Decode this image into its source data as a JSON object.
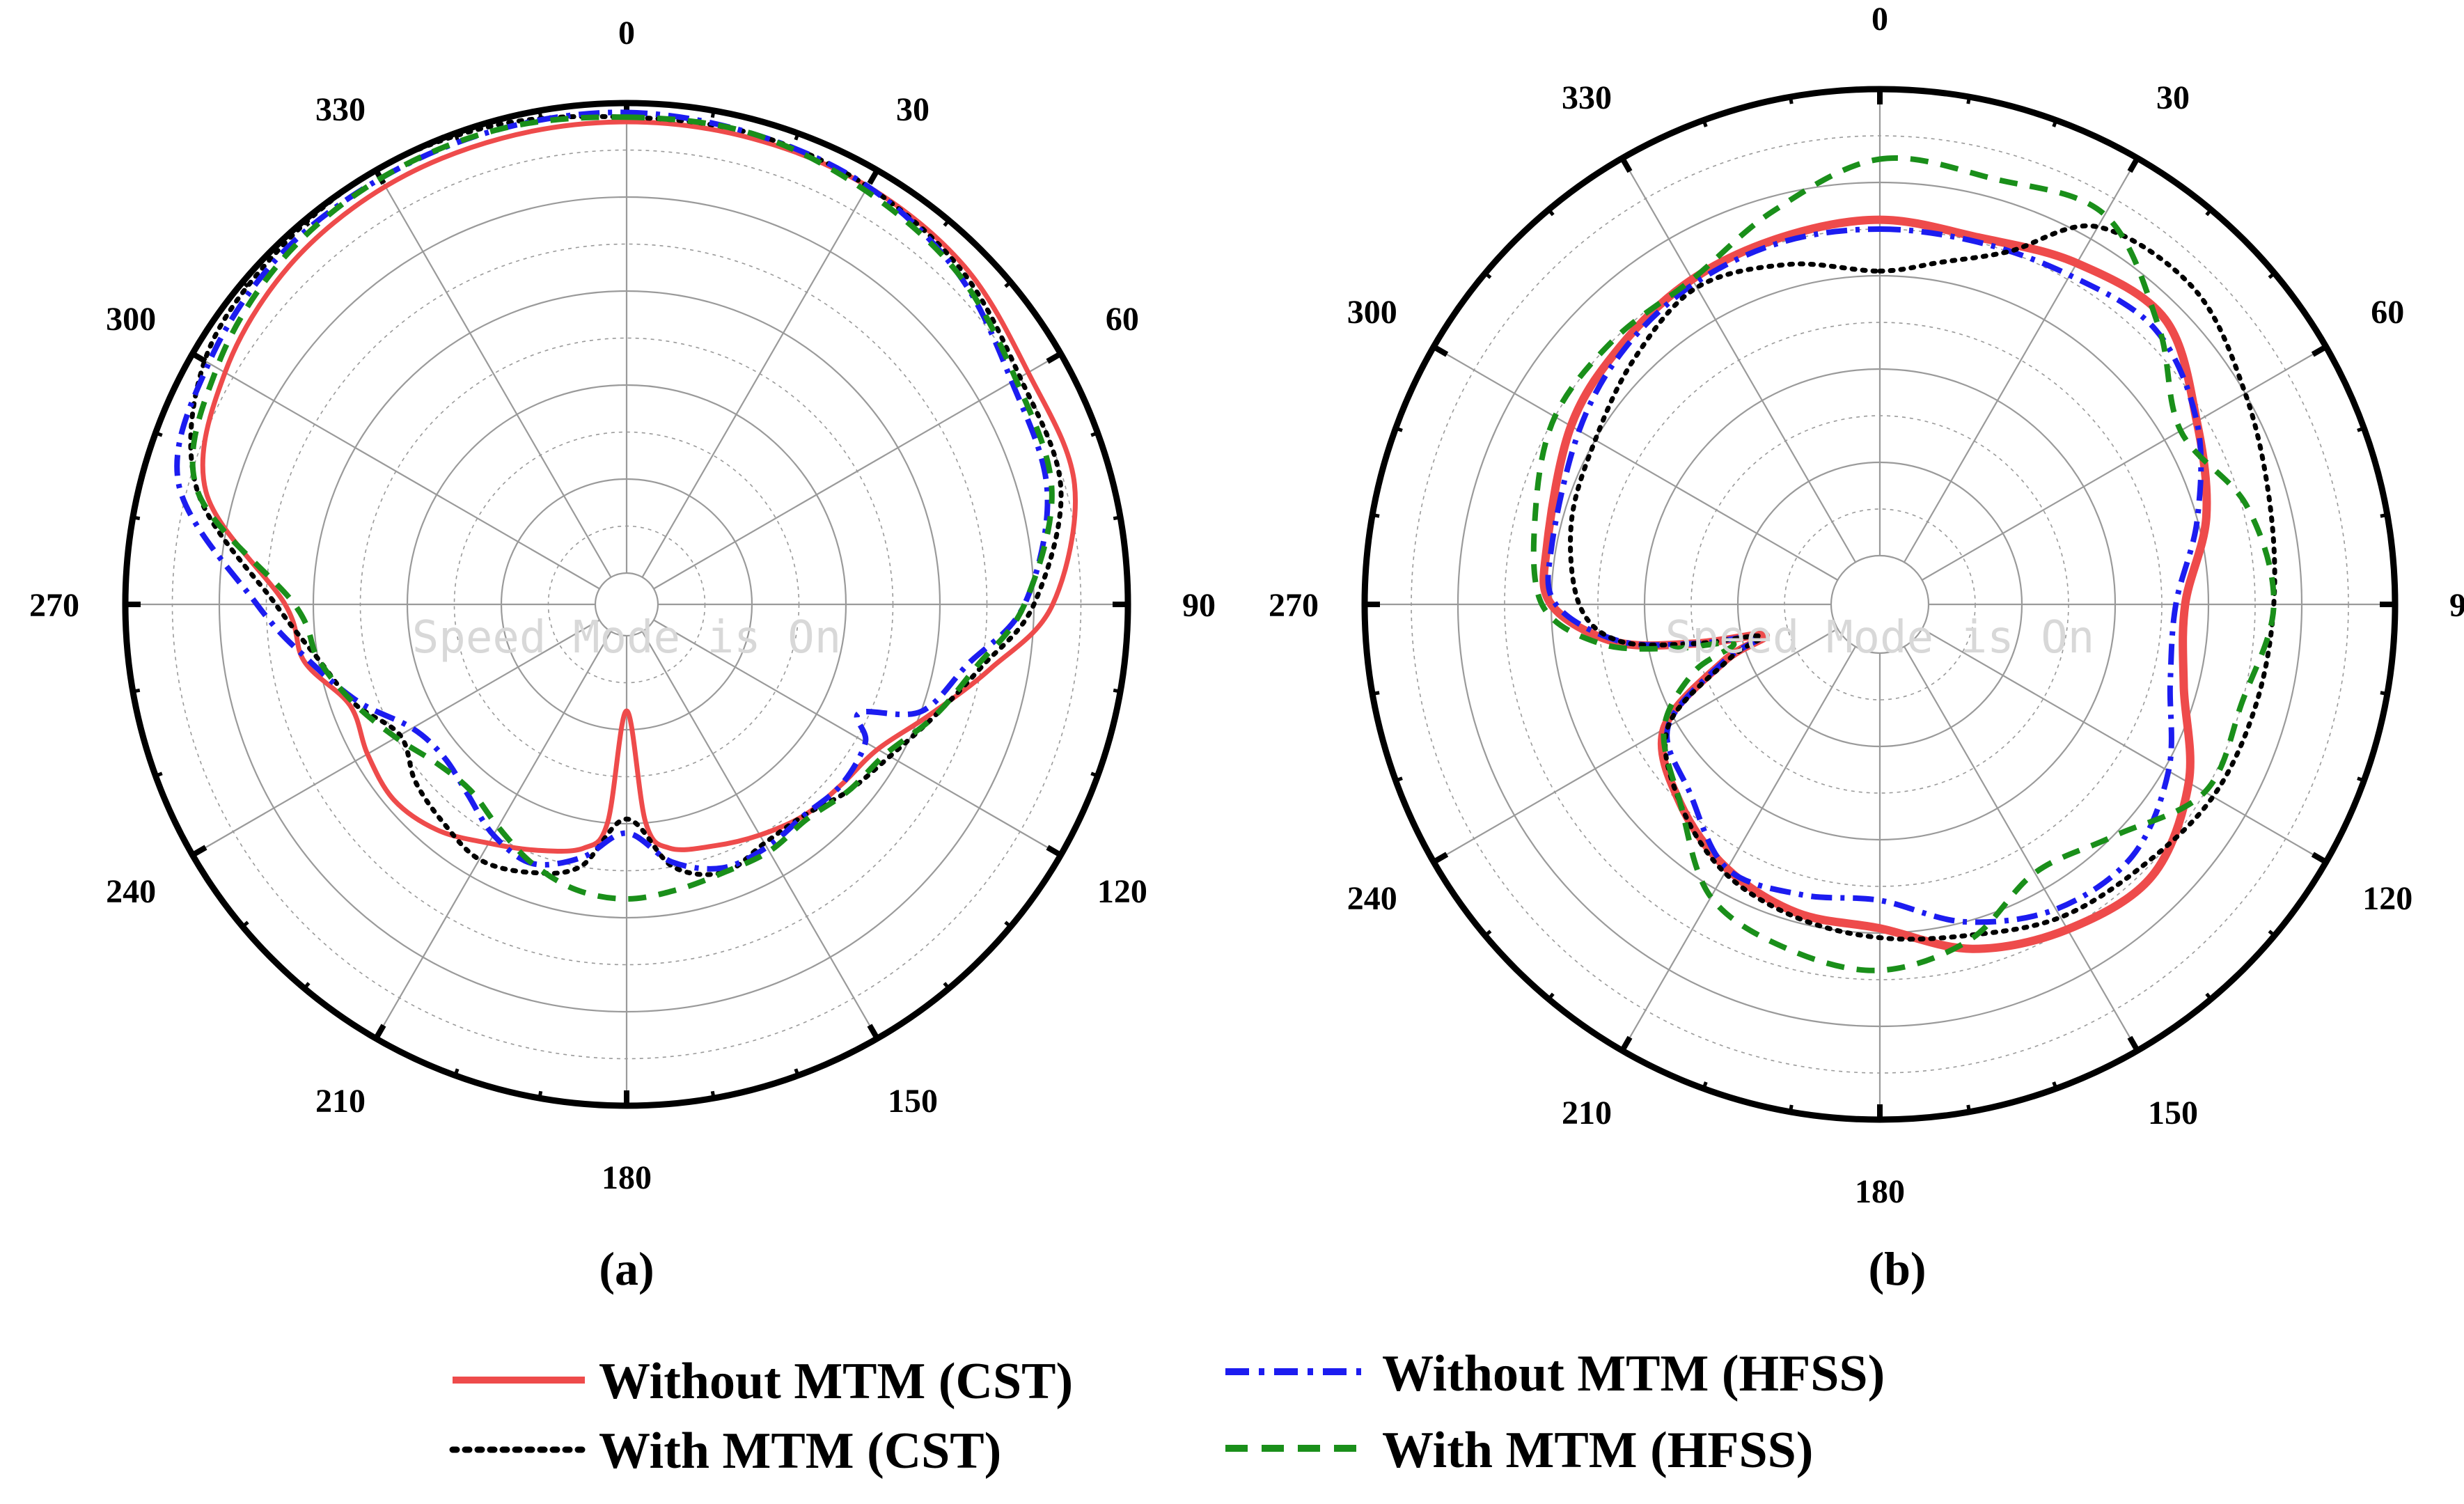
{
  "colors": {
    "cst_without": "#ee4b4b",
    "cst_with": "#000000",
    "hfss_without": "#1c1cf0",
    "hfss_with": "#1a8f1a",
    "grid": "#9a9a9a"
  },
  "watermark": "Speed Mode is On",
  "legend": [
    {
      "key": "cst_without",
      "label": "Without MTM (CST)",
      "style": "solid"
    },
    {
      "key": "hfss_without",
      "label": "Without MTM (HFSS)",
      "style": "dashdot"
    },
    {
      "key": "cst_with",
      "label": "With MTM (CST)",
      "style": "dotted"
    },
    {
      "key": "hfss_with",
      "label": "With MTM (HFSS)",
      "style": "dashed"
    }
  ],
  "chart_data": [
    {
      "type": "polar",
      "panel_label": "(a)",
      "angle_ticks": [
        "0",
        "30",
        "60",
        "90",
        "120",
        "150",
        "180",
        "210",
        "240",
        "270",
        "300",
        "330"
      ],
      "rlim": [
        0,
        1
      ],
      "series": [
        {
          "key": "cst_without",
          "name": "Without MTM (CST)",
          "angles": [
            0,
            15,
            30,
            45,
            60,
            75,
            90,
            100,
            110,
            120,
            130,
            140,
            150,
            160,
            170,
            175,
            180,
            185,
            190,
            200,
            210,
            220,
            230,
            240,
            250,
            260,
            270,
            285,
            300,
            315,
            330,
            345,
            360
          ],
          "radii": [
            0.96,
            0.96,
            0.96,
            0.95,
            0.92,
            0.92,
            0.84,
            0.72,
            0.62,
            0.55,
            0.53,
            0.52,
            0.5,
            0.48,
            0.46,
            0.4,
            0.16,
            0.4,
            0.46,
            0.49,
            0.52,
            0.56,
            0.58,
            0.57,
            0.56,
            0.63,
            0.66,
            0.86,
            0.92,
            0.95,
            0.96,
            0.96,
            0.96
          ]
        },
        {
          "key": "cst_with",
          "name": "With MTM (CST)",
          "angles": [
            0,
            15,
            30,
            45,
            60,
            75,
            90,
            100,
            110,
            120,
            130,
            140,
            150,
            160,
            170,
            180,
            190,
            200,
            210,
            220,
            230,
            240,
            250,
            260,
            270,
            285,
            300,
            315,
            330,
            345,
            360
          ],
          "radii": [
            0.97,
            0.97,
            0.96,
            0.94,
            0.9,
            0.89,
            0.8,
            0.7,
            0.63,
            0.58,
            0.55,
            0.52,
            0.52,
            0.54,
            0.5,
            0.39,
            0.5,
            0.54,
            0.56,
            0.54,
            0.52,
            0.49,
            0.55,
            0.6,
            0.68,
            0.88,
            0.97,
            0.99,
            1.0,
            0.99,
            0.97
          ]
        },
        {
          "key": "hfss_without",
          "name": "Without MTM (HFSS)",
          "angles": [
            0,
            15,
            30,
            45,
            60,
            75,
            90,
            100,
            110,
            115,
            120,
            130,
            140,
            150,
            160,
            170,
            180,
            190,
            200,
            210,
            220,
            230,
            240,
            250,
            260,
            270,
            285,
            300,
            315,
            330,
            345,
            360
          ],
          "radii": [
            0.98,
            0.97,
            0.96,
            0.93,
            0.88,
            0.86,
            0.78,
            0.67,
            0.6,
            0.48,
            0.52,
            0.53,
            0.52,
            0.53,
            0.53,
            0.49,
            0.42,
            0.48,
            0.52,
            0.5,
            0.46,
            0.44,
            0.46,
            0.54,
            0.62,
            0.72,
            0.92,
            0.96,
            0.98,
            0.98,
            0.98,
            0.98
          ]
        },
        {
          "key": "hfss_with",
          "name": "With MTM (HFSS)",
          "angles": [
            0,
            15,
            30,
            45,
            60,
            75,
            90,
            100,
            110,
            120,
            130,
            140,
            150,
            160,
            170,
            180,
            190,
            200,
            210,
            220,
            230,
            240,
            250,
            260,
            270,
            285,
            300,
            315,
            330,
            345,
            360
          ],
          "radii": [
            0.97,
            0.97,
            0.95,
            0.93,
            0.89,
            0.87,
            0.78,
            0.69,
            0.63,
            0.57,
            0.55,
            0.53,
            0.54,
            0.54,
            0.55,
            0.56,
            0.55,
            0.52,
            0.48,
            0.45,
            0.46,
            0.5,
            0.55,
            0.6,
            0.64,
            0.88,
            0.94,
            0.97,
            0.98,
            0.98,
            0.97
          ]
        }
      ]
    },
    {
      "type": "polar",
      "panel_label": "(b)",
      "angle_ticks": [
        "0",
        "30",
        "60",
        "90",
        "120",
        "150",
        "180",
        "210",
        "240",
        "270",
        "300",
        "330"
      ],
      "rlim": [
        0,
        1
      ],
      "series": [
        {
          "key": "cst_without",
          "name": "Without MTM (CST)",
          "angles": [
            0,
            15,
            30,
            45,
            60,
            75,
            90,
            105,
            120,
            135,
            150,
            165,
            180,
            195,
            210,
            225,
            240,
            250,
            255,
            258,
            262,
            270,
            280,
            300,
            315,
            330,
            345,
            360
          ],
          "radii": [
            0.72,
            0.71,
            0.74,
            0.76,
            0.68,
            0.62,
            0.55,
            0.57,
            0.66,
            0.72,
            0.7,
            0.66,
            0.59,
            0.58,
            0.55,
            0.5,
            0.43,
            0.25,
            0.15,
            0.3,
            0.47,
            0.6,
            0.62,
            0.66,
            0.68,
            0.7,
            0.71,
            0.72
          ]
        },
        {
          "key": "hfss_without",
          "name": "Without MTM (HFSS)",
          "angles": [
            0,
            15,
            30,
            45,
            60,
            75,
            90,
            105,
            120,
            135,
            150,
            165,
            180,
            195,
            210,
            225,
            240,
            250,
            255,
            258,
            262,
            270,
            280,
            300,
            315,
            330,
            345,
            360
          ],
          "radii": [
            0.7,
            0.7,
            0.71,
            0.73,
            0.68,
            0.6,
            0.53,
            0.54,
            0.61,
            0.66,
            0.65,
            0.6,
            0.53,
            0.54,
            0.55,
            0.47,
            0.42,
            0.25,
            0.16,
            0.3,
            0.46,
            0.59,
            0.61,
            0.64,
            0.67,
            0.69,
            0.7,
            0.7
          ]
        },
        {
          "key": "cst_with",
          "name": "With MTM (CST)",
          "angles": [
            0,
            10,
            20,
            30,
            45,
            60,
            75,
            90,
            105,
            120,
            135,
            150,
            165,
            180,
            195,
            210,
            225,
            240,
            250,
            255,
            258,
            262,
            270,
            285,
            300,
            315,
            330,
            345,
            360
          ],
          "radii": [
            0.61,
            0.64,
            0.7,
            0.83,
            0.85,
            0.8,
            0.76,
            0.74,
            0.73,
            0.72,
            0.69,
            0.67,
            0.63,
            0.61,
            0.59,
            0.56,
            0.5,
            0.42,
            0.24,
            0.16,
            0.3,
            0.46,
            0.54,
            0.58,
            0.6,
            0.64,
            0.68,
            0.65,
            0.61
          ]
        },
        {
          "key": "hfss_with",
          "name": "With MTM (HFSS)",
          "angles": [
            0,
            15,
            30,
            45,
            60,
            75,
            90,
            105,
            120,
            135,
            150,
            165,
            180,
            195,
            210,
            225,
            240,
            250,
            255,
            258,
            262,
            270,
            285,
            300,
            315,
            330,
            345,
            360
          ],
          "radii": [
            0.85,
            0.84,
            0.86,
            0.74,
            0.64,
            0.71,
            0.74,
            0.7,
            0.7,
            0.6,
            0.56,
            0.64,
            0.68,
            0.66,
            0.62,
            0.5,
            0.43,
            0.32,
            0.22,
            0.35,
            0.5,
            0.62,
            0.66,
            0.7,
            0.7,
            0.7,
            0.77,
            0.85
          ]
        }
      ]
    }
  ]
}
